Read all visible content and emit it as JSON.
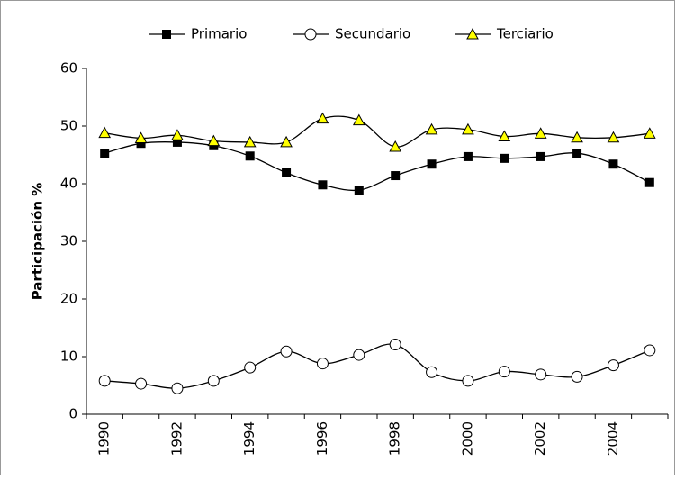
{
  "chart_data": {
    "type": "line",
    "y_label": "Participación %",
    "categories": [
      "1990",
      null,
      "1992",
      null,
      "1994",
      null,
      "1996",
      null,
      "1998",
      null,
      "2000",
      null,
      "2002",
      null,
      "2004",
      null
    ],
    "series": [
      {
        "name": "Primario",
        "color": "#000000",
        "marker": "square",
        "values": [
          45.3,
          47.0,
          47.2,
          46.6,
          44.8,
          41.9,
          39.8,
          38.9,
          41.4,
          43.4,
          44.7,
          44.4,
          44.7,
          45.3,
          43.4,
          40.2
        ]
      },
      {
        "name": "Secundario",
        "color": "#000000",
        "marker": "circle",
        "values": [
          5.8,
          5.3,
          4.5,
          5.8,
          8.1,
          10.9,
          8.8,
          10.3,
          12.1,
          7.3,
          5.8,
          7.4,
          6.9,
          6.5,
          8.5,
          11.1
        ]
      },
      {
        "name": "Terciario",
        "color": "#000000",
        "marker": "triangle",
        "marker_fill": "#ffff00",
        "values": [
          48.8,
          47.9,
          48.4,
          47.4,
          47.2,
          47.2,
          51.3,
          51.0,
          46.4,
          49.4,
          49.4,
          48.2,
          48.7,
          48.0,
          48.0,
          48.7
        ]
      }
    ],
    "ylim": [
      0,
      60
    ],
    "yticks": [
      0,
      10,
      20,
      30,
      40,
      50,
      60
    ],
    "smooth": true,
    "grid": false,
    "legend": "top"
  }
}
